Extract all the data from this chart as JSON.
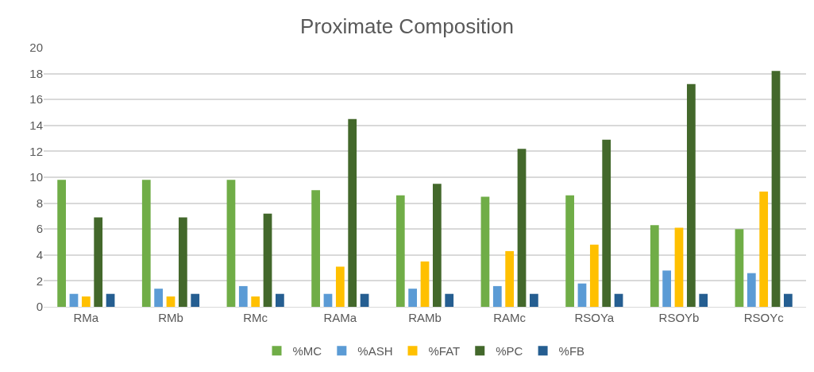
{
  "chart_data": {
    "type": "bar",
    "title": "Proximate Composition",
    "categories": [
      "RMa",
      "RMb",
      "RMc",
      "RAMa",
      "RAMb",
      "RAMc",
      "RSOYa",
      "RSOYb",
      "RSOYc"
    ],
    "series": [
      {
        "name": "%MC",
        "color": "#70ad47",
        "values": [
          9.8,
          9.8,
          9.8,
          9.0,
          8.6,
          8.5,
          8.6,
          6.3,
          6.0
        ]
      },
      {
        "name": "%ASH",
        "color": "#5b9bd5",
        "values": [
          1.0,
          1.4,
          1.6,
          1.0,
          1.4,
          1.6,
          1.8,
          2.8,
          2.6
        ]
      },
      {
        "name": "%FAT",
        "color": "#ffc000",
        "values": [
          0.8,
          0.8,
          0.8,
          3.1,
          3.5,
          4.3,
          4.8,
          6.1,
          8.9
        ]
      },
      {
        "name": "%PC",
        "color": "#43682b",
        "values": [
          6.9,
          6.9,
          7.2,
          14.5,
          9.5,
          12.2,
          12.9,
          17.2,
          18.2
        ]
      },
      {
        "name": "%FB",
        "color": "#255e91",
        "values": [
          1.0,
          1.0,
          1.0,
          1.0,
          1.0,
          1.0,
          1.0,
          1.0,
          1.0
        ]
      }
    ],
    "ylim": [
      0,
      20
    ],
    "yticks": [
      0,
      2,
      4,
      6,
      8,
      10,
      12,
      14,
      16,
      18,
      20
    ],
    "grid": "y",
    "legend": "bottom"
  }
}
